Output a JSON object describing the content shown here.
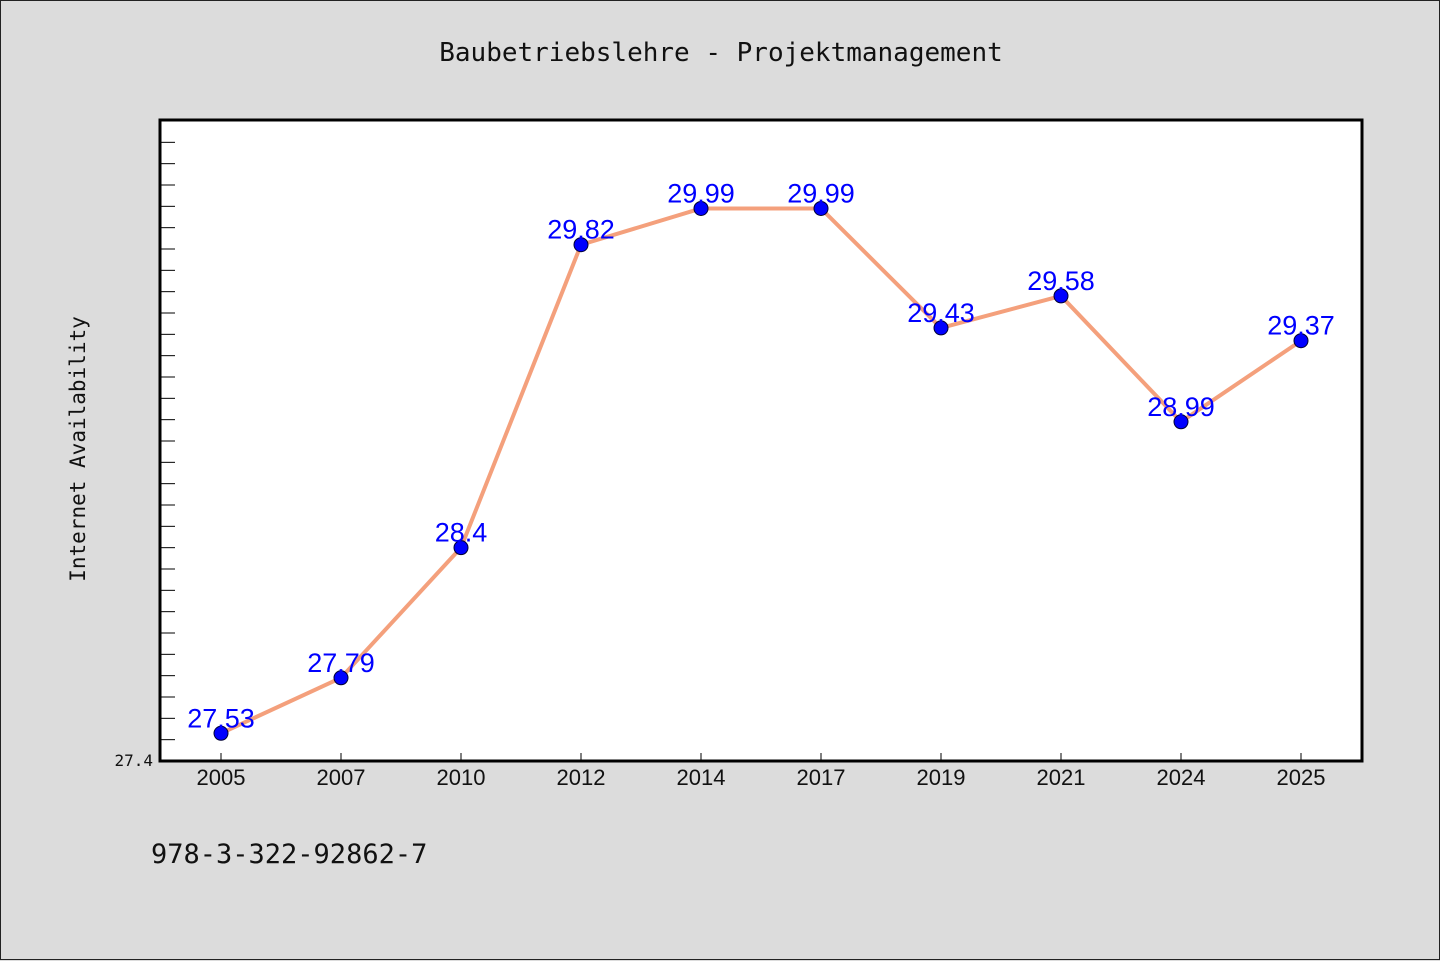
{
  "chart_data": {
    "type": "line",
    "title": "Baubetriebslehre - Projektmanagement",
    "xlabel": "",
    "ylabel": "Internet Availability",
    "categories": [
      "2005",
      "2007",
      "2010",
      "2012",
      "2014",
      "2017",
      "2019",
      "2021",
      "2024",
      "2025"
    ],
    "series": [
      {
        "values": [
          27.53,
          27.79,
          28.4,
          29.82,
          29.99,
          29.99,
          29.43,
          29.58,
          28.99,
          29.37
        ],
        "labels": [
          "27.53",
          "27.79",
          "28.4",
          "29.82",
          "29.99",
          "29.99",
          "29.43",
          "29.58",
          "28.99",
          "29.37"
        ]
      }
    ],
    "ylim": [
      27.4,
      30.4
    ],
    "ytick_labels": [
      "27.4"
    ],
    "grid": false,
    "line_color": "#f4a07c",
    "marker_color": "#0000ff",
    "label_color": "#0000ff"
  },
  "footer_text": "978-3-322-92862-7"
}
